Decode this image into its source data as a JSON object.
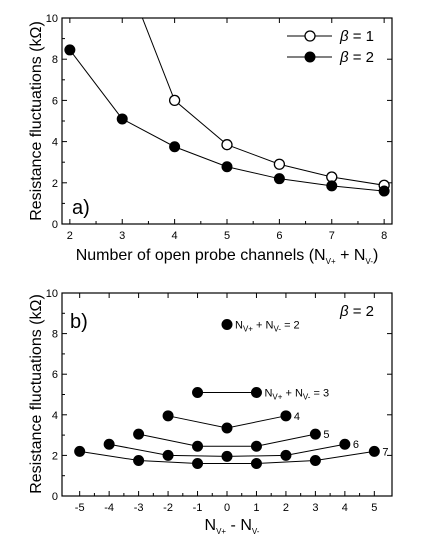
{
  "chart_data": [
    {
      "type": "line",
      "panel_label": "a)",
      "xlabel": "Number of open probe channels (N",
      "xlabel_parts": [
        "Number of open probe channels (N",
        "V+",
        " + N",
        "V-",
        ")"
      ],
      "ylabel": "Resistance fluctuations  (kΩ)",
      "xlim": [
        1.85,
        8.15
      ],
      "ylim": [
        0,
        10
      ],
      "x_ticks": [
        2,
        3,
        4,
        5,
        6,
        7,
        8
      ],
      "y_ticks": [
        0,
        2,
        4,
        6,
        8,
        10
      ],
      "grid": false,
      "legend_position": "top-right",
      "series": [
        {
          "name": "β = 1",
          "legend_symbol": "β",
          "legend_value": " = 1",
          "marker": "open-circle",
          "x": [
            3,
            4,
            5,
            6,
            7,
            8
          ],
          "y": [
            12.5,
            6.0,
            3.85,
            2.9,
            2.28,
            1.88
          ]
        },
        {
          "name": "β = 2",
          "legend_symbol": "β",
          "legend_value": " = 2",
          "marker": "filled-circle",
          "x": [
            2,
            3,
            4,
            5,
            6,
            7,
            8
          ],
          "y": [
            8.45,
            5.1,
            3.75,
            2.78,
            2.2,
            1.85,
            1.6
          ]
        }
      ]
    },
    {
      "type": "scatter",
      "panel_label": "b)",
      "title_symbol": "β",
      "title_value": " = 2",
      "xlabel": "N",
      "xlabel_parts": [
        "N",
        "V+",
        " -  N",
        "V-"
      ],
      "ylabel": "Resistance fluctuations  (kΩ)",
      "xlim": [
        -5.6,
        5.6
      ],
      "ylim": [
        0,
        10
      ],
      "x_ticks": [
        -5,
        -4,
        -3,
        -2,
        -1,
        0,
        1,
        2,
        3,
        4,
        5
      ],
      "y_ticks": [
        0,
        2,
        4,
        6,
        8,
        10
      ],
      "grid": false,
      "series": [
        {
          "name": "N_V+ + N_V- = 2",
          "label_parts": [
            "N",
            "V+",
            " + N",
            "V-",
            " = 2"
          ],
          "x": [
            0
          ],
          "y": [
            8.45
          ]
        },
        {
          "name": "N_V+ + N_V- = 3",
          "label_parts": [
            "N",
            "V+",
            " + N",
            "V-",
            " = 3"
          ],
          "x": [
            -1,
            1
          ],
          "y": [
            5.1,
            5.1
          ]
        },
        {
          "name": "4",
          "label_parts": [
            "4"
          ],
          "x": [
            -2,
            0,
            2
          ],
          "y": [
            3.95,
            3.35,
            3.95
          ]
        },
        {
          "name": "5",
          "label_parts": [
            "5"
          ],
          "x": [
            -3,
            -1,
            1,
            3
          ],
          "y": [
            3.05,
            2.45,
            2.45,
            3.05
          ]
        },
        {
          "name": "6",
          "label_parts": [
            "6"
          ],
          "x": [
            -4,
            -2,
            0,
            2,
            4
          ],
          "y": [
            2.55,
            2.0,
            1.95,
            2.0,
            2.55
          ]
        },
        {
          "name": "7",
          "label_parts": [
            "7"
          ],
          "x": [
            -5,
            -3,
            -1,
            1,
            3,
            5
          ],
          "y": [
            2.2,
            1.75,
            1.6,
            1.6,
            1.75,
            2.2
          ]
        }
      ]
    }
  ]
}
